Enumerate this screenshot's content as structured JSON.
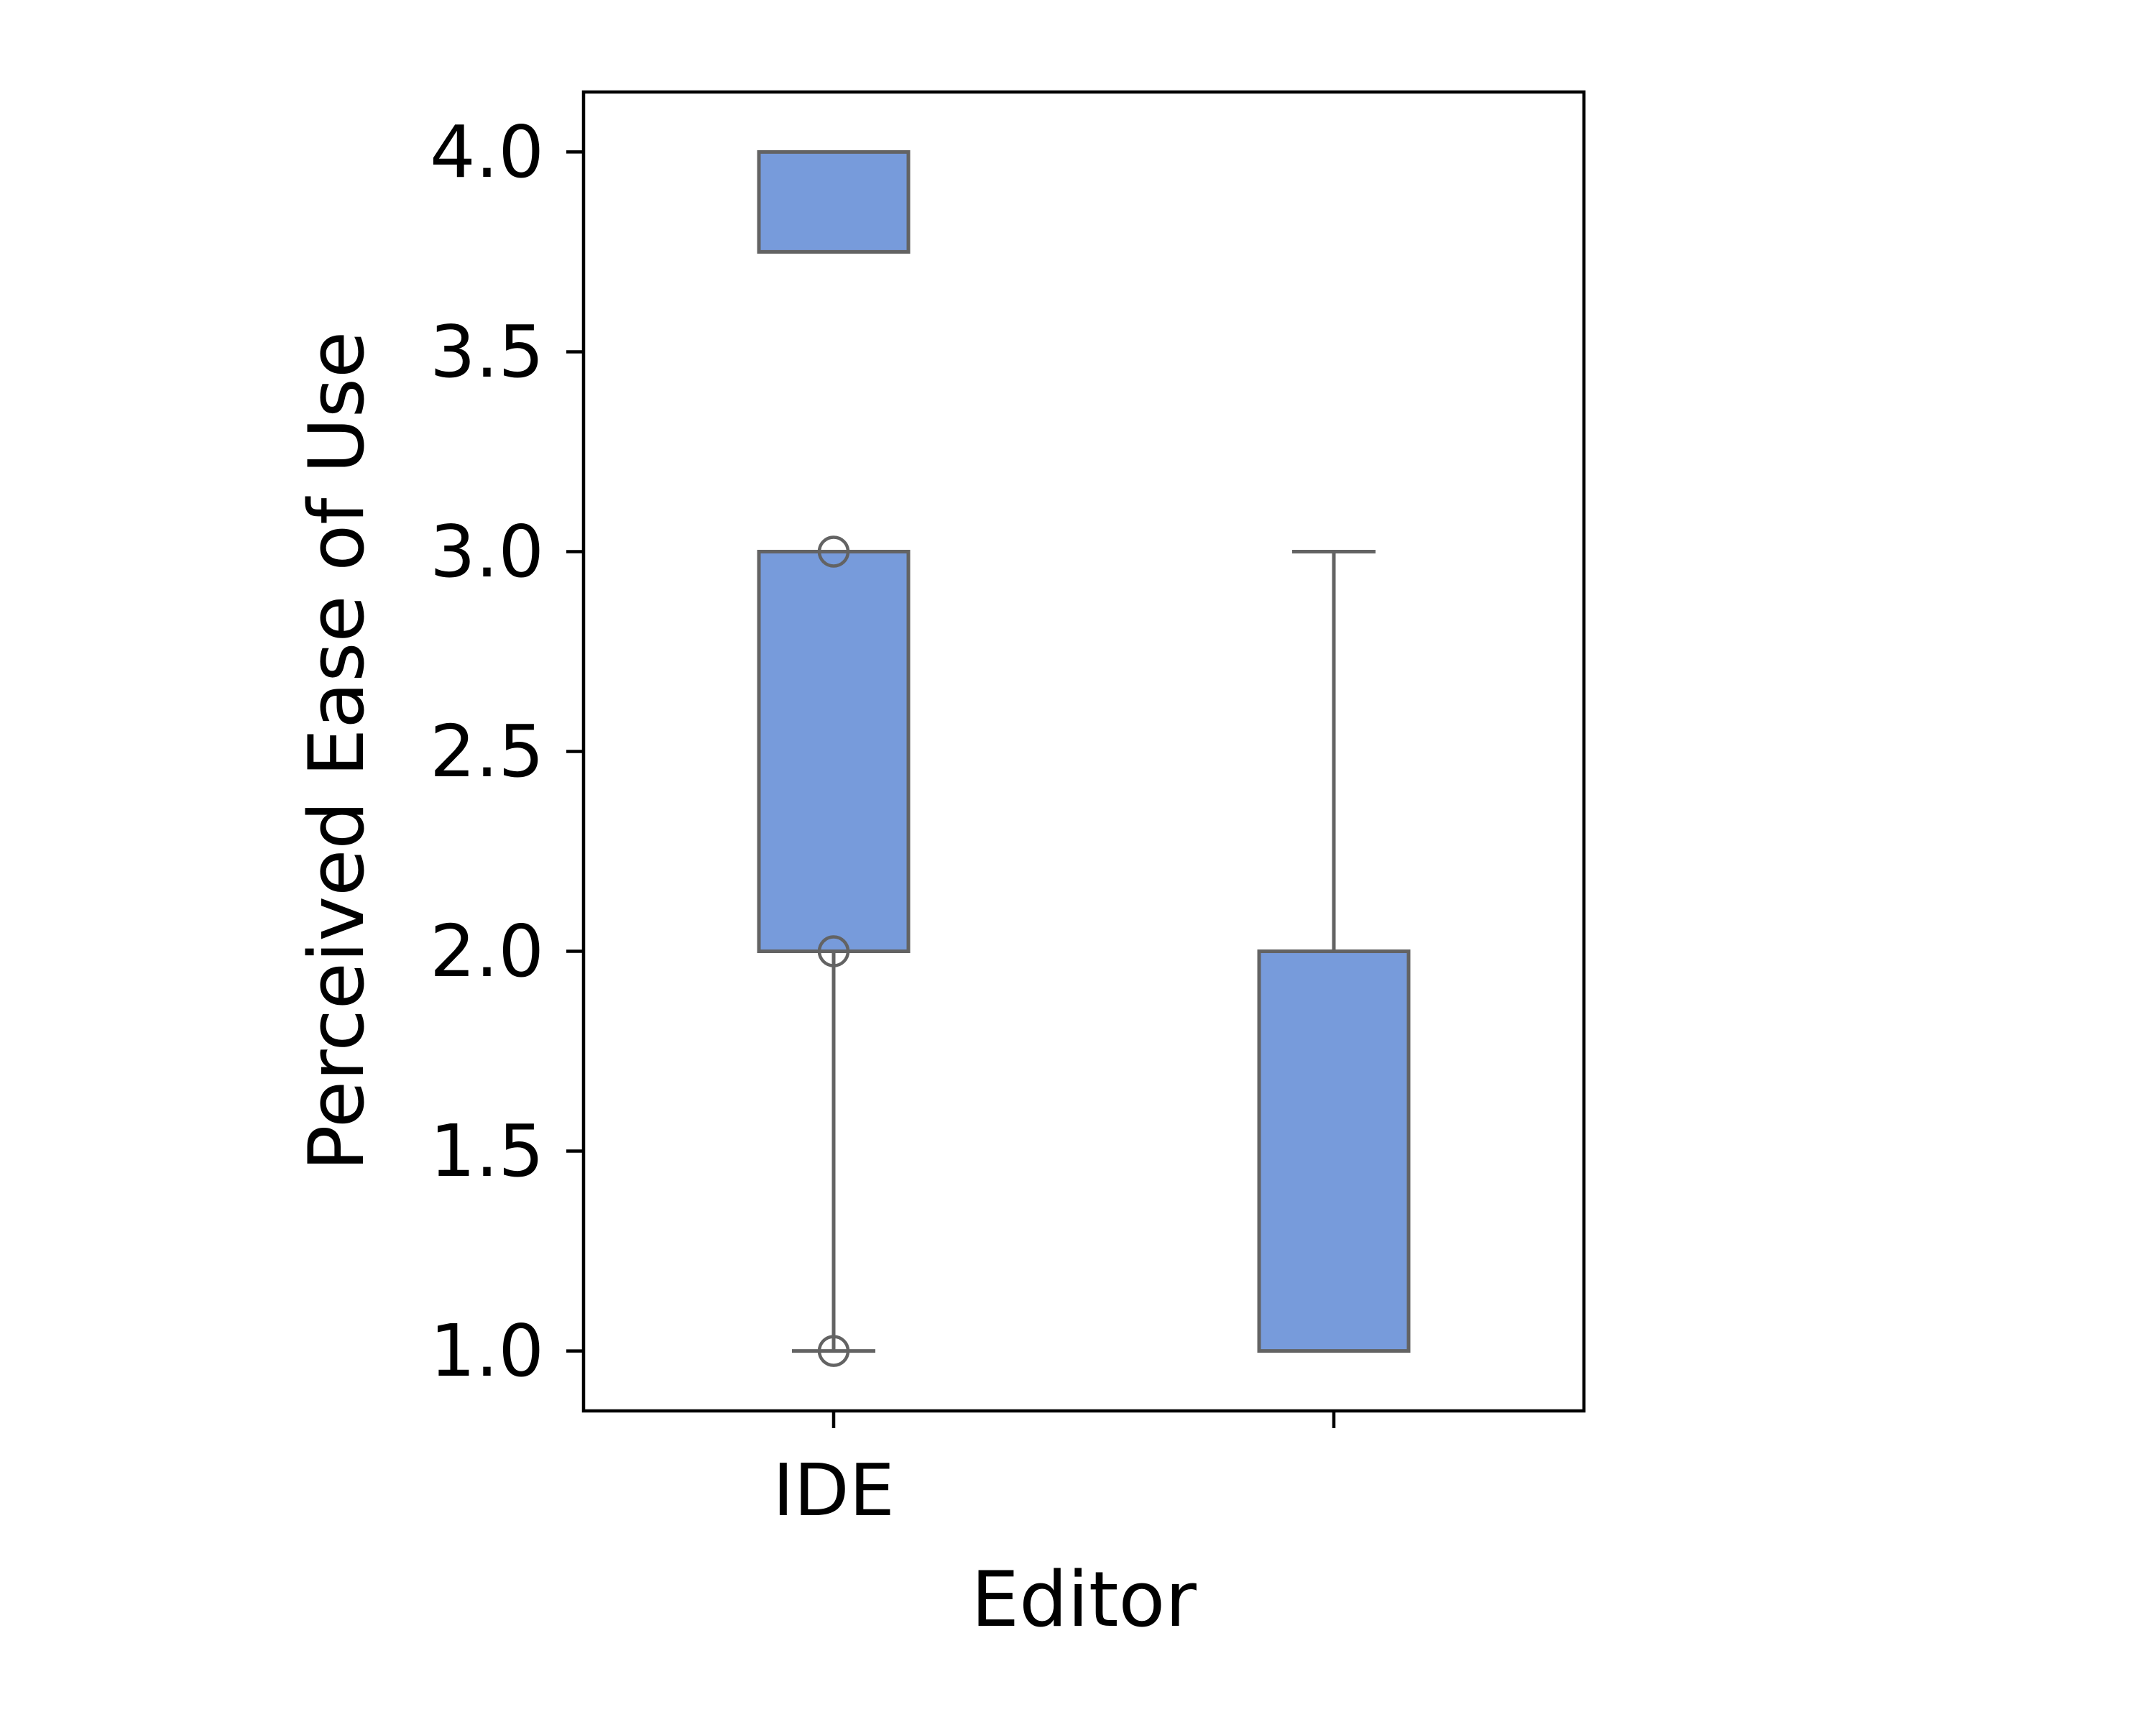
{
  "chart_data": {
    "type": "box",
    "title": "",
    "xlabel": "Editor",
    "ylabel": "Perceived Ease of Use",
    "ylim": [
      0.85,
      4.15
    ],
    "yticks": [
      "1.0",
      "1.5",
      "2.0",
      "2.5",
      "3.0",
      "3.5",
      "4.0"
    ],
    "ytick_values": [
      1.0,
      1.5,
      2.0,
      2.5,
      3.0,
      3.5,
      4.0
    ],
    "categories": [
      "IDE",
      ""
    ],
    "grid": false,
    "legend": "none",
    "colors": {
      "box_fill": "#779bdb",
      "box_edge": "#636363",
      "axis": "#000000"
    },
    "groups": [
      {
        "category": "IDE",
        "boxes": [
          {
            "q1": 3.75,
            "q3": 4.0
          },
          {
            "q1": 2.0,
            "q3": 3.0
          }
        ],
        "whiskers": [
          {
            "from": 2.0,
            "to": 1.0
          }
        ],
        "caps": [
          1.0
        ],
        "outliers": [
          3.0,
          2.0,
          1.0
        ]
      },
      {
        "category": "",
        "boxes": [
          {
            "q1": 1.0,
            "q3": 2.0
          }
        ],
        "whiskers": [
          {
            "from": 2.0,
            "to": 3.0
          }
        ],
        "caps": [
          3.0
        ],
        "outliers": []
      }
    ]
  }
}
